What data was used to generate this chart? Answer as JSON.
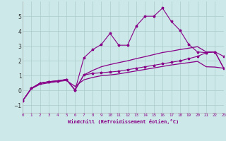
{
  "xlabel": "Windchill (Refroidissement éolien,°C)",
  "xlim": [
    0,
    23
  ],
  "ylim": [
    -1.5,
    6.0
  ],
  "yticks": [
    -1,
    0,
    1,
    2,
    3,
    4,
    5
  ],
  "xtick_labels": [
    "0",
    "1",
    "2",
    "3",
    "4",
    "5",
    "6",
    "7",
    "8",
    "9",
    "10",
    "11",
    "12",
    "13",
    "14",
    "15",
    "16",
    "17",
    "18",
    "19",
    "20",
    "21",
    "22",
    "23"
  ],
  "bg_color": "#cce8e8",
  "grid_color": "#aacccc",
  "line_color": "#880088",
  "line1_x": [
    0,
    1,
    2,
    3,
    4,
    5,
    6,
    7,
    8,
    9,
    10,
    11,
    12,
    13,
    14,
    15,
    16,
    17,
    18,
    19,
    20,
    21,
    22,
    23
  ],
  "line1_y": [
    -0.7,
    0.15,
    0.5,
    0.6,
    0.65,
    0.75,
    0.02,
    1.05,
    1.15,
    1.2,
    1.25,
    1.3,
    1.4,
    1.5,
    1.6,
    1.7,
    1.8,
    1.9,
    2.0,
    2.15,
    2.3,
    2.55,
    2.6,
    2.3
  ],
  "line2_x": [
    0,
    1,
    2,
    3,
    4,
    5,
    6,
    7,
    8,
    9,
    10,
    11,
    12,
    13,
    14,
    15,
    16,
    17,
    18,
    19,
    20,
    21,
    22,
    23
  ],
  "line2_y": [
    -0.7,
    0.15,
    0.5,
    0.6,
    0.65,
    0.75,
    0.02,
    2.2,
    2.75,
    3.1,
    3.85,
    3.05,
    3.05,
    4.35,
    5.0,
    5.0,
    5.55,
    4.65,
    4.05,
    3.1,
    2.6,
    2.55,
    2.6,
    1.5
  ],
  "line3_x": [
    0,
    1,
    2,
    3,
    4,
    5,
    6,
    7,
    8,
    9,
    10,
    11,
    12,
    13,
    14,
    15,
    16,
    17,
    18,
    19,
    20,
    21,
    22,
    23
  ],
  "line3_y": [
    -0.7,
    0.15,
    0.5,
    0.58,
    0.65,
    0.73,
    0.05,
    1.05,
    1.35,
    1.6,
    1.75,
    1.88,
    2.0,
    2.15,
    2.28,
    2.42,
    2.56,
    2.65,
    2.76,
    2.85,
    2.95,
    2.6,
    2.6,
    1.5
  ],
  "line4_x": [
    0,
    1,
    2,
    3,
    4,
    5,
    6,
    7,
    8,
    9,
    10,
    11,
    12,
    13,
    14,
    15,
    16,
    17,
    18,
    19,
    20,
    21,
    22,
    23
  ],
  "line4_y": [
    -0.7,
    0.12,
    0.42,
    0.52,
    0.6,
    0.68,
    0.28,
    0.72,
    0.88,
    1.0,
    1.05,
    1.12,
    1.22,
    1.32,
    1.42,
    1.52,
    1.62,
    1.72,
    1.8,
    1.88,
    1.96,
    1.6,
    1.58,
    1.5
  ]
}
